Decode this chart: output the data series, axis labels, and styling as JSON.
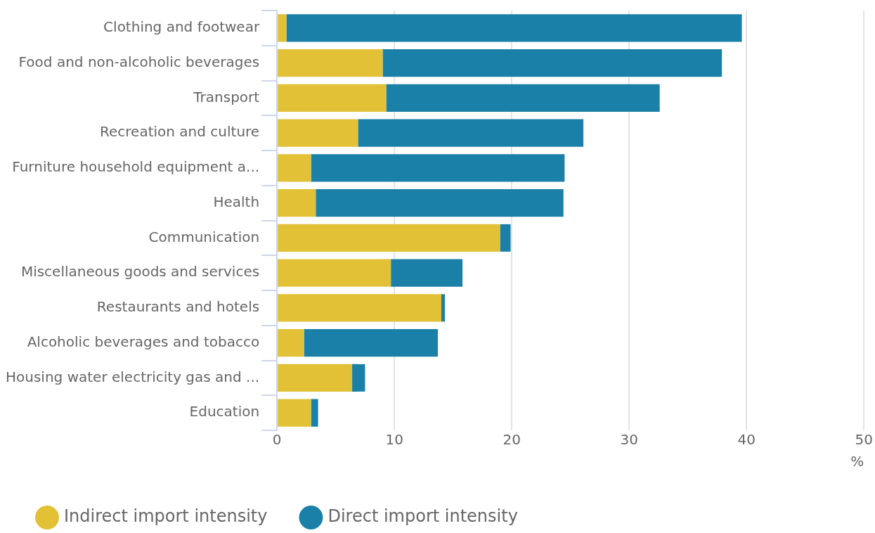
{
  "chart_data": {
    "type": "bar",
    "orientation": "horizontal",
    "stacked": true,
    "categories": [
      "Clothing and footwear",
      "Food and non-alcoholic beverages",
      "Transport",
      "Recreation and culture",
      "Furniture household equipment a...",
      "Health",
      "Communication",
      "Miscellaneous goods and services",
      "Restaurants and hotels",
      "Alcoholic beverages and tobacco",
      "Housing water electricity gas and ...",
      "Education"
    ],
    "series": [
      {
        "name": "Indirect import intensity",
        "color": "#e2c136",
        "values": [
          0.8,
          9.0,
          9.3,
          6.9,
          2.9,
          3.3,
          19.0,
          9.7,
          14.0,
          2.3,
          6.4,
          2.9
        ]
      },
      {
        "name": "Direct import intensity",
        "color": "#1a80a8",
        "values": [
          38.8,
          28.9,
          23.3,
          19.2,
          21.6,
          21.1,
          0.9,
          6.1,
          0.3,
          11.4,
          1.1,
          0.6
        ]
      }
    ],
    "xlabel": "%",
    "xlim": [
      0,
      50
    ],
    "xticks": [
      0,
      10,
      20,
      30,
      40,
      50
    ],
    "grid": "x",
    "legend": "bottom left"
  }
}
